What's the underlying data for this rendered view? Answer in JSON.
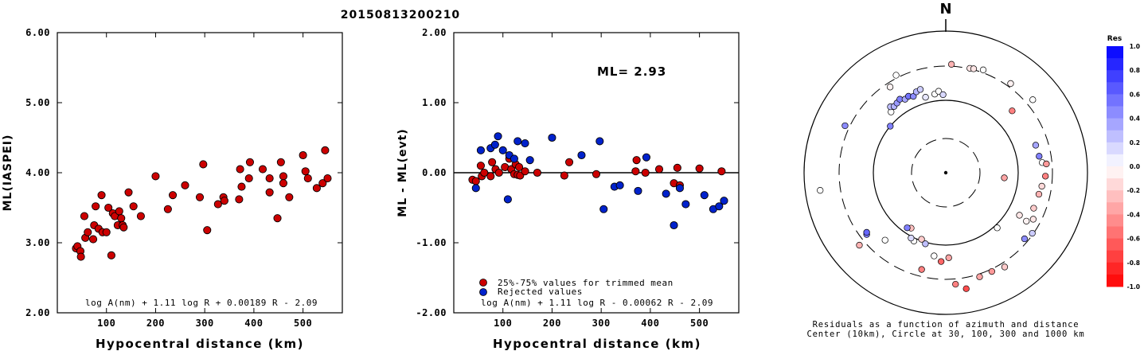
{
  "title": "20150813200210",
  "colors": {
    "accepted": "#cc0000",
    "rejected": "#0022cc",
    "point_stroke": "#000000",
    "axis": "#000000",
    "zero_line": "#000000"
  },
  "chart_data": [
    {
      "id": "ml-vs-distance",
      "type": "scatter",
      "xlabel": "Hypocentral distance (km)",
      "ylabel": "ML(IASPEI)",
      "xlim": [
        0,
        580
      ],
      "ylim": [
        2.0,
        6.0
      ],
      "xticks": [
        100,
        200,
        300,
        400,
        500
      ],
      "yticks": [
        "2.00",
        "3.00",
        "4.00",
        "5.00",
        "6.00"
      ],
      "formula": "log A(nm) + 1.11 log R + 0.00189 R - 2.09",
      "series": [
        {
          "points": [
            [
              38,
              2.92
            ],
            [
              41,
              2.95
            ],
            [
              47,
              2.88
            ],
            [
              48,
              2.8
            ],
            [
              55,
              3.38
            ],
            [
              57,
              3.07
            ],
            [
              62,
              3.15
            ],
            [
              73,
              3.05
            ],
            [
              75,
              3.25
            ],
            [
              78,
              3.52
            ],
            [
              84,
              3.2
            ],
            [
              90,
              3.68
            ],
            [
              92,
              3.15
            ],
            [
              100,
              3.15
            ],
            [
              104,
              3.5
            ],
            [
              110,
              2.82
            ],
            [
              113,
              3.42
            ],
            [
              117,
              3.38
            ],
            [
              123,
              3.25
            ],
            [
              126,
              3.45
            ],
            [
              130,
              3.35
            ],
            [
              133,
              3.25
            ],
            [
              135,
              3.22
            ],
            [
              145,
              3.72
            ],
            [
              155,
              3.52
            ],
            [
              170,
              3.38
            ],
            [
              200,
              3.95
            ],
            [
              225,
              3.48
            ],
            [
              235,
              3.68
            ],
            [
              260,
              3.82
            ],
            [
              290,
              3.65
            ],
            [
              297,
              4.12
            ],
            [
              305,
              3.18
            ],
            [
              327,
              3.55
            ],
            [
              338,
              3.65
            ],
            [
              340,
              3.6
            ],
            [
              370,
              3.62
            ],
            [
              372,
              4.05
            ],
            [
              375,
              3.8
            ],
            [
              390,
              3.92
            ],
            [
              392,
              4.15
            ],
            [
              418,
              4.05
            ],
            [
              432,
              3.72
            ],
            [
              432,
              3.92
            ],
            [
              448,
              3.35
            ],
            [
              455,
              4.15
            ],
            [
              460,
              3.95
            ],
            [
              460,
              3.85
            ],
            [
              472,
              3.65
            ],
            [
              500,
              4.25
            ],
            [
              505,
              4.02
            ],
            [
              510,
              3.92
            ],
            [
              528,
              3.78
            ],
            [
              540,
              3.85
            ],
            [
              545,
              4.32
            ],
            [
              550,
              3.92
            ]
          ]
        }
      ]
    },
    {
      "id": "residual-vs-distance",
      "type": "scatter",
      "xlabel": "Hypocentral distance (km)",
      "ylabel": "ML - ML(evt)",
      "xlim": [
        0,
        580
      ],
      "ylim": [
        -2.0,
        2.0
      ],
      "xticks": [
        100,
        200,
        300,
        400,
        500
      ],
      "yticks": [
        "-2.00",
        "-1.00",
        "0.00",
        "1.00",
        "2.00"
      ],
      "reference_line": 0.0,
      "ml_label": "ML= 2.93",
      "formula": "log A(nm) + 1.11 log R - 0.00062 R - 2.09",
      "series": [
        {
          "name": "25%-75% values for trimmed mean",
          "color": "#cc0000",
          "points": [
            [
              38,
              -0.1
            ],
            [
              45,
              -0.12
            ],
            [
              55,
              0.1
            ],
            [
              57,
              -0.05
            ],
            [
              62,
              0.0
            ],
            [
              75,
              -0.05
            ],
            [
              78,
              0.15
            ],
            [
              85,
              0.05
            ],
            [
              92,
              0.0
            ],
            [
              104,
              0.08
            ],
            [
              113,
              0.2
            ],
            [
              117,
              0.05
            ],
            [
              123,
              -0.02
            ],
            [
              126,
              0.12
            ],
            [
              130,
              -0.03
            ],
            [
              133,
              0.08
            ],
            [
              135,
              -0.04
            ],
            [
              145,
              0.02
            ],
            [
              170,
              0.0
            ],
            [
              225,
              -0.04
            ],
            [
              235,
              0.15
            ],
            [
              290,
              -0.02
            ],
            [
              370,
              0.02
            ],
            [
              372,
              0.18
            ],
            [
              390,
              0.0
            ],
            [
              418,
              0.05
            ],
            [
              448,
              -0.15
            ],
            [
              455,
              0.07
            ],
            [
              460,
              -0.18
            ],
            [
              500,
              0.06
            ],
            [
              545,
              0.02
            ]
          ]
        },
        {
          "name": "Rejected values",
          "color": "#0022cc",
          "points": [
            [
              45,
              -0.22
            ],
            [
              55,
              0.32
            ],
            [
              75,
              0.35
            ],
            [
              84,
              0.4
            ],
            [
              90,
              0.52
            ],
            [
              100,
              0.32
            ],
            [
              110,
              -0.38
            ],
            [
              113,
              0.25
            ],
            [
              123,
              0.2
            ],
            [
              130,
              0.45
            ],
            [
              145,
              0.42
            ],
            [
              155,
              0.18
            ],
            [
              200,
              0.5
            ],
            [
              260,
              0.25
            ],
            [
              297,
              0.45
            ],
            [
              305,
              -0.52
            ],
            [
              327,
              -0.2
            ],
            [
              338,
              -0.18
            ],
            [
              375,
              -0.26
            ],
            [
              392,
              0.22
            ],
            [
              432,
              -0.3
            ],
            [
              448,
              -0.75
            ],
            [
              460,
              -0.22
            ],
            [
              472,
              -0.45
            ],
            [
              510,
              -0.32
            ],
            [
              528,
              -0.52
            ],
            [
              540,
              -0.48
            ],
            [
              550,
              -0.4
            ]
          ]
        }
      ]
    },
    {
      "id": "azimuth-residuals",
      "type": "scatter",
      "north_label": "N",
      "caption_line1": "Residuals as a function of azimuth and distance",
      "caption_line2": "Center (10km), Circle at 30, 100, 300 and 1000 km",
      "colorbar": {
        "title": "Res",
        "ticks": [
          "1.0",
          "0.8",
          "0.6",
          "0.4",
          "0.2",
          "0.0",
          "-0.2",
          "-0.4",
          "-0.6",
          "-0.8",
          "-1.0"
        ],
        "range": [
          -1.0,
          1.0
        ]
      },
      "stations": [
        {
          "az": 3,
          "dist_km": 320,
          "res": -0.3
        },
        {
          "az": 13,
          "dist_km": 305,
          "res": -0.1
        },
        {
          "az": 15,
          "dist_km": 310,
          "res": -0.1
        },
        {
          "az": 20,
          "dist_km": 330,
          "res": 0.0
        },
        {
          "az": 36,
          "dist_km": 340,
          "res": -0.05
        },
        {
          "az": 47,
          "dist_km": 180,
          "res": -0.5
        },
        {
          "az": 50,
          "dist_km": 380,
          "res": 0.0
        },
        {
          "az": 73,
          "dist_km": 200,
          "res": 0.35
        },
        {
          "az": 80,
          "dist_km": 205,
          "res": 0.5
        },
        {
          "az": 84,
          "dist_km": 220,
          "res": 0.0
        },
        {
          "az": 85,
          "dist_km": 250,
          "res": -0.4
        },
        {
          "az": 92,
          "dist_km": 240,
          "res": -0.5
        },
        {
          "az": 95,
          "dist_km": 65,
          "res": -0.35
        },
        {
          "az": 98,
          "dist_km": 220,
          "res": -0.15
        },
        {
          "az": 103,
          "dist_km": 210,
          "res": -0.3
        },
        {
          "az": 112,
          "dist_km": 205,
          "res": -0.2
        },
        {
          "az": 118,
          "dist_km": 235,
          "res": -0.1
        },
        {
          "az": 120,
          "dist_km": 150,
          "res": -0.1
        },
        {
          "az": 121,
          "dist_km": 200,
          "res": -0.05
        },
        {
          "az": 125,
          "dist_km": 290,
          "res": 0.2
        },
        {
          "az": 130,
          "dist_km": 265,
          "res": 0.45
        },
        {
          "az": 137,
          "dist_km": 110,
          "res": 0.0
        },
        {
          "az": 148,
          "dist_km": 350,
          "res": -0.2
        },
        {
          "az": 155,
          "dist_km": 325,
          "res": -0.4
        },
        {
          "az": 162,
          "dist_km": 330,
          "res": -0.35
        },
        {
          "az": 170,
          "dist_km": 440,
          "res": -0.7
        },
        {
          "az": 175,
          "dist_km": 360,
          "res": -0.5
        },
        {
          "az": 178,
          "dist_km": 150,
          "res": -0.35
        },
        {
          "az": 183,
          "dist_km": 170,
          "res": -0.6
        },
        {
          "az": 188,
          "dist_km": 145,
          "res": 0.0
        },
        {
          "az": 194,
          "dist_km": 240,
          "res": -0.5
        },
        {
          "az": 196,
          "dist_km": 105,
          "res": 0.25
        },
        {
          "az": 200,
          "dist_km": 95,
          "res": -0.2
        },
        {
          "az": 205,
          "dist_km": 110,
          "res": 0.0
        },
        {
          "az": 208,
          "dist_km": 105,
          "res": 0.15
        },
        {
          "az": 212,
          "dist_km": 80,
          "res": -0.25
        },
        {
          "az": 215,
          "dist_km": 85,
          "res": 0.5
        },
        {
          "az": 222,
          "dist_km": 180,
          "res": 0.0
        },
        {
          "az": 230,
          "dist_km": 370,
          "res": -0.3
        },
        {
          "az": 232,
          "dist_km": 245,
          "res": 0.5
        },
        {
          "az": 233,
          "dist_km": 235,
          "res": 0.6
        },
        {
          "az": 262,
          "dist_km": 600,
          "res": 0.0
        },
        {
          "az": 295,
          "dist_km": 350,
          "res": 0.45
        },
        {
          "az": 310,
          "dist_km": 100,
          "res": 0.5
        },
        {
          "az": 318,
          "dist_km": 135,
          "res": 0.0
        },
        {
          "az": 320,
          "dist_km": 155,
          "res": 0.25
        },
        {
          "az": 322,
          "dist_km": 145,
          "res": 0.3
        },
        {
          "az": 325,
          "dist_km": 150,
          "res": 0.4
        },
        {
          "az": 328,
          "dist_km": 158,
          "res": 0.5
        },
        {
          "az": 331,
          "dist_km": 145,
          "res": 0.35
        },
        {
          "az": 334,
          "dist_km": 150,
          "res": 0.55
        },
        {
          "az": 337,
          "dist_km": 140,
          "res": 0.45
        },
        {
          "az": 340,
          "dist_km": 155,
          "res": 0.3
        },
        {
          "az": 343,
          "dist_km": 160,
          "res": 0.2
        },
        {
          "az": 327,
          "dist_km": 260,
          "res": -0.05
        },
        {
          "az": 333,
          "dist_km": 330,
          "res": 0.0
        },
        {
          "az": 345,
          "dist_km": 120,
          "res": 0.1
        },
        {
          "az": 352,
          "dist_km": 125,
          "res": 0.0
        },
        {
          "az": 355,
          "dist_km": 135,
          "res": 0.0
        },
        {
          "az": 358,
          "dist_km": 120,
          "res": 0.15
        }
      ]
    }
  ]
}
